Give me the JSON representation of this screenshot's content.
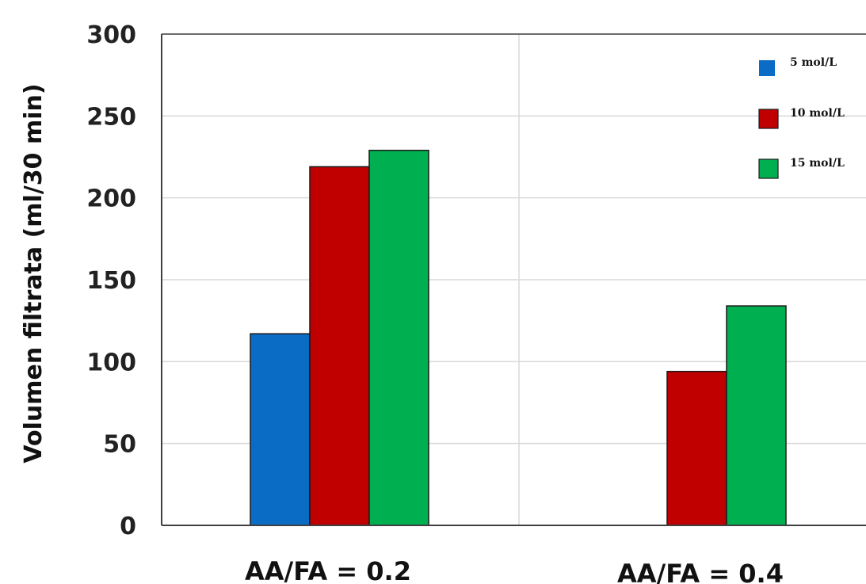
{
  "chart_data": {
    "type": "bar",
    "ylabel": "Volumen filtrata (ml/30 min)",
    "xlabel": "",
    "ylim": [
      0,
      300
    ],
    "yticks": [
      0,
      50,
      100,
      150,
      200,
      250,
      300
    ],
    "categories": [
      "AA/FA = 0.2",
      "AA/FA = 0.4"
    ],
    "series": [
      {
        "name": "5 mol/L",
        "color": "#0a6cc4",
        "values": [
          117,
          null
        ]
      },
      {
        "name": "10 mol/L",
        "color": "#c00000",
        "values": [
          219,
          94
        ]
      },
      {
        "name": "15 mol/L",
        "color": "#00b050",
        "values": [
          229,
          134
        ]
      }
    ],
    "grid": true,
    "legend_position": "top-right"
  }
}
